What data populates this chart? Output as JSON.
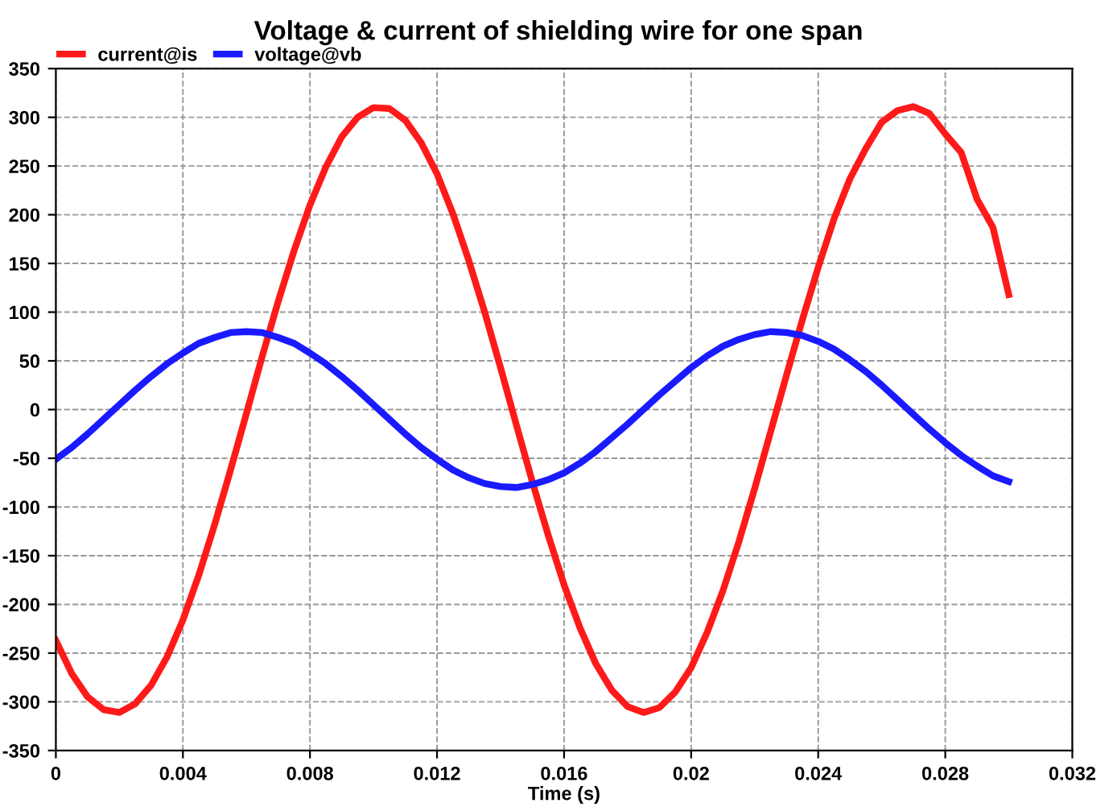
{
  "chart_data": {
    "type": "line",
    "title": "Voltage & current of shielding wire for one span",
    "xlabel": "Time (s)",
    "x": [
      0,
      0.0005,
      0.001,
      0.0015,
      0.002,
      0.0025,
      0.003,
      0.0035,
      0.004,
      0.0045,
      0.005,
      0.0055,
      0.006,
      0.0065,
      0.007,
      0.0075,
      0.008,
      0.0085,
      0.009,
      0.0095,
      0.01,
      0.0105,
      0.011,
      0.0115,
      0.012,
      0.0125,
      0.013,
      0.0135,
      0.014,
      0.0145,
      0.015,
      0.0155,
      0.016,
      0.0165,
      0.017,
      0.0175,
      0.018,
      0.0185,
      0.019,
      0.0195,
      0.02,
      0.0205,
      0.021,
      0.0215,
      0.022,
      0.0225,
      0.023,
      0.0235,
      0.024,
      0.0245,
      0.025,
      0.0255,
      0.026,
      0.0265,
      0.027,
      0.0275,
      0.028,
      0.0285,
      0.029,
      0.0295,
      0.03
    ],
    "series": [
      {
        "name": "current@is",
        "color": "#ff1a1a",
        "values": [
          -237,
          -271,
          -295,
          -308,
          -311,
          -302,
          -283,
          -254,
          -216,
          -170,
          -118,
          -62,
          -4,
          55,
          111,
          163,
          210,
          249,
          280,
          300,
          310,
          309,
          297,
          274,
          242,
          201,
          153,
          100,
          43,
          -16,
          -74,
          -129,
          -180,
          -224,
          -261,
          -288,
          -305,
          -311,
          -306,
          -290,
          -265,
          -229,
          -186,
          -136,
          -81,
          -23,
          35,
          92,
          146,
          196,
          237,
          268,
          295,
          307,
          311,
          304,
          283,
          264,
          216,
          187,
          118
        ]
      },
      {
        "name": "voltage@vb",
        "color": "#1a1aff",
        "values": [
          -51,
          -39,
          -25,
          -10,
          5,
          20,
          34,
          47,
          58,
          68,
          74,
          79,
          80,
          79,
          74,
          68,
          58,
          47,
          34,
          20,
          5,
          -10,
          -25,
          -39,
          -51,
          -62,
          -70,
          -76,
          -79,
          -80,
          -77,
          -72,
          -65,
          -55,
          -43,
          -29,
          -15,
          0,
          15,
          29,
          43,
          55,
          65,
          72,
          77,
          80,
          79,
          76,
          70,
          62,
          51,
          39,
          25,
          10,
          -5,
          -20,
          -34,
          -47,
          -58,
          -68,
          -74
        ]
      }
    ],
    "xlim": [
      0,
      0.032
    ],
    "xticks": [
      0,
      0.004,
      0.008,
      0.012,
      0.016,
      0.02,
      0.024,
      0.028,
      0.032
    ],
    "ylim": [
      -350,
      350
    ],
    "yticks": [
      -350,
      -300,
      -250,
      -200,
      -150,
      -100,
      -50,
      0,
      50,
      100,
      150,
      200,
      250,
      300,
      350
    ],
    "grid": true,
    "legend": "top left",
    "line_style": "solid"
  }
}
